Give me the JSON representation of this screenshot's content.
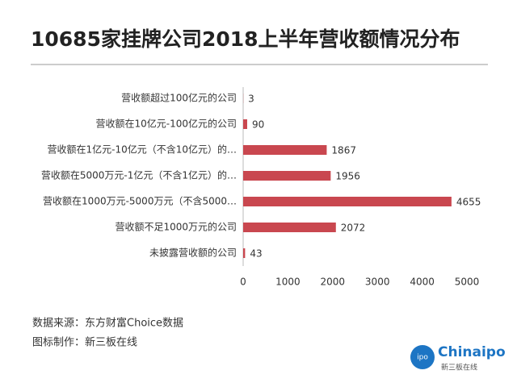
{
  "chart_data": {
    "type": "bar",
    "orientation": "horizontal",
    "title": "10685家挂牌公司2018上半年营收额情况分布",
    "categories": [
      "营收额超过100亿元的公司",
      "营收额在10亿元-100亿元的公司",
      "营收额在1亿元-10亿元（不含10亿元）的…",
      "营收额在5000万元-1亿元（不含1亿元）的…",
      "营收额在1000万元-5000万元（不含5000…",
      "营收额不足1000万元的公司",
      "未披露营收额的公司"
    ],
    "values": [
      3,
      90,
      1867,
      1956,
      4655,
      2072,
      43
    ],
    "color": "#c9474f",
    "xlim": [
      0,
      5000
    ],
    "xticks": [
      0,
      1000,
      2000,
      3000,
      4000,
      5000
    ],
    "grid": false,
    "notes": [
      "数据来源：东方财富Choice数据",
      "图标制作：新三板在线"
    ]
  },
  "logo": {
    "name": "Chinaipo",
    "tagline": "新三板在线"
  }
}
